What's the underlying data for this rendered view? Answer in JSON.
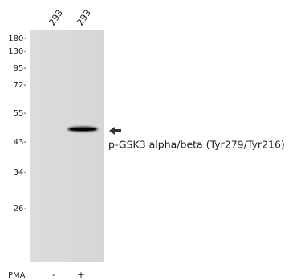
{
  "lanes": [
    {
      "label": "293",
      "treatment": "-"
    },
    {
      "label": "293",
      "treatment": "+"
    }
  ],
  "markers": [
    "180-",
    "130-",
    "95-",
    "72-",
    "55-",
    "43-",
    "34-",
    "26-"
  ],
  "treatment_label": "PMA",
  "band_label": "p-GSK3 alpha/beta (Tyr279/Tyr216)"
}
